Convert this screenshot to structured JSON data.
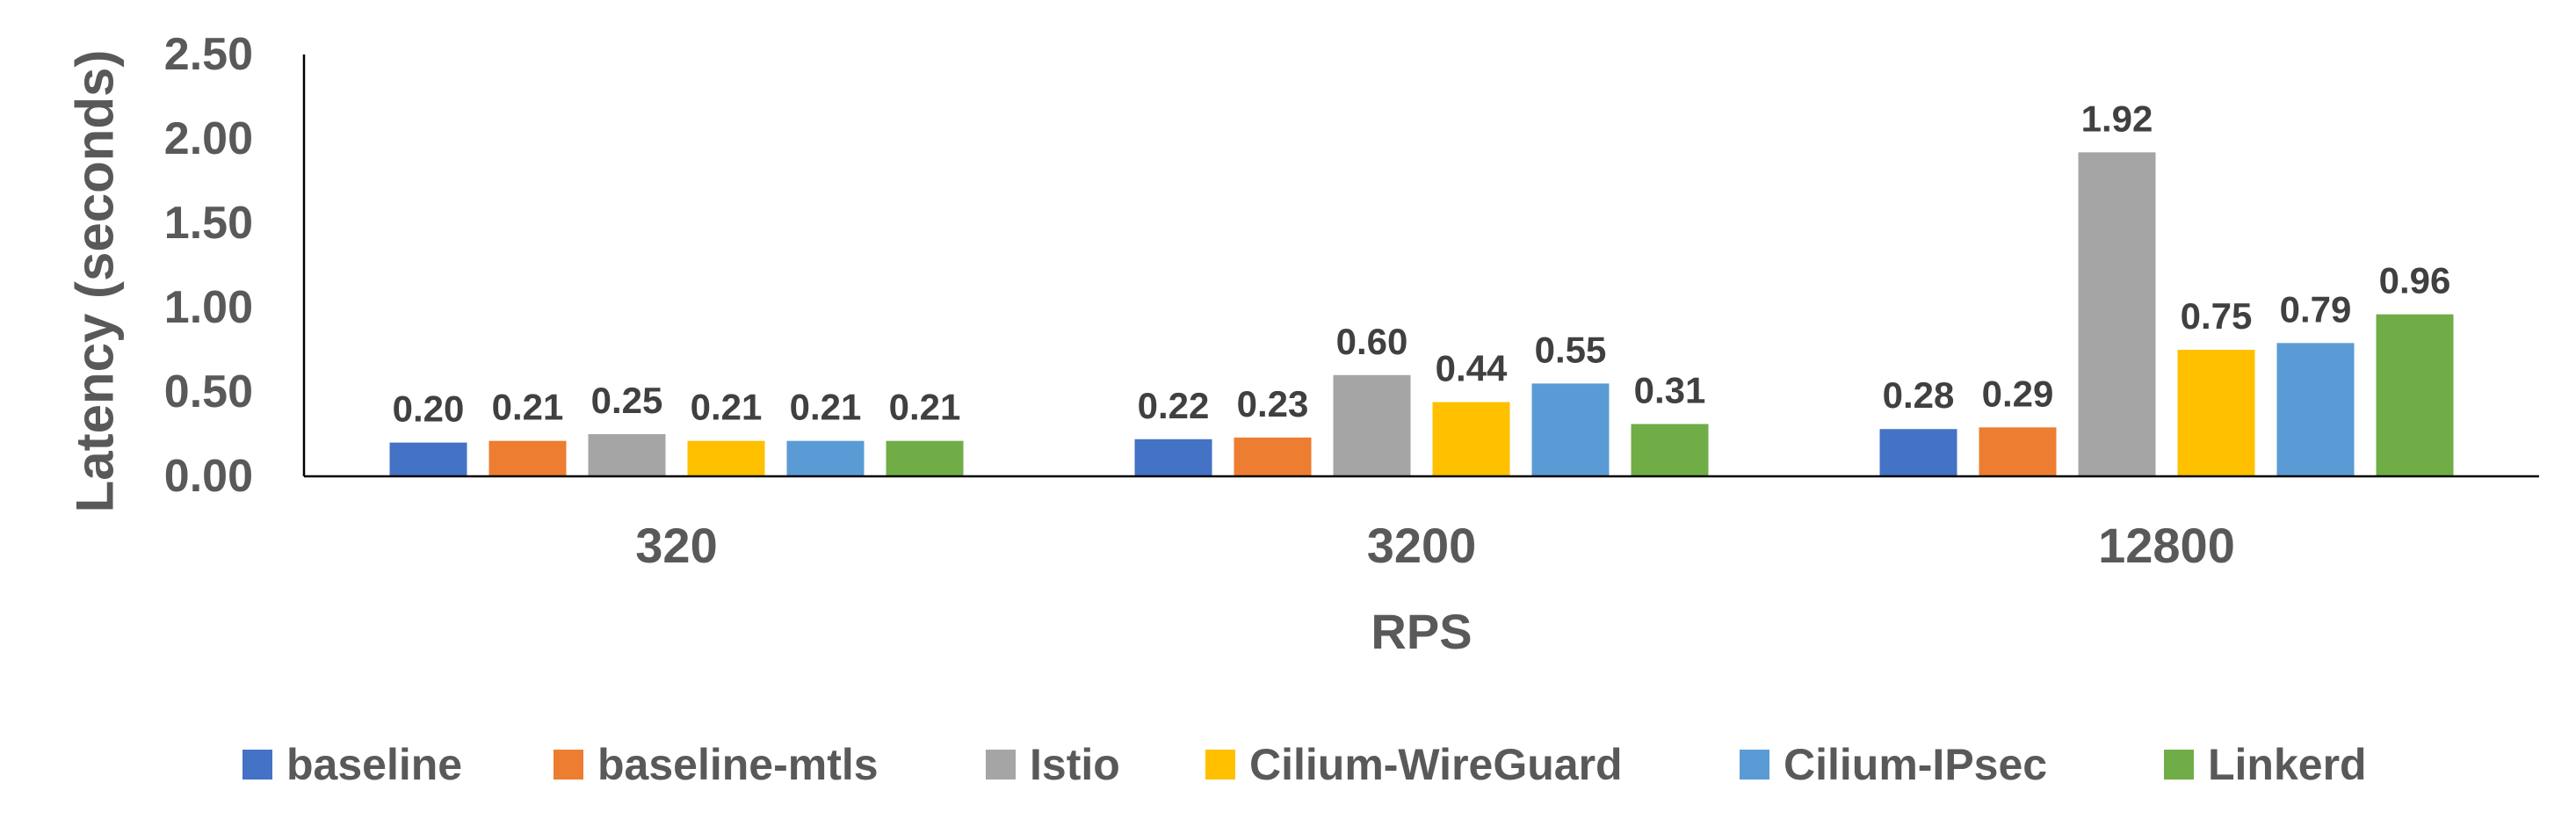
{
  "chart_data": {
    "type": "bar",
    "xlabel": "RPS",
    "ylabel": "Latency (seconds)",
    "categories": [
      "320",
      "3200",
      "12800"
    ],
    "ylim": [
      0,
      2.5
    ],
    "yticks": [
      "0.00",
      "0.50",
      "1.00",
      "1.50",
      "2.00",
      "2.50"
    ],
    "grid": false,
    "legend_position": "bottom",
    "series": [
      {
        "name": "baseline",
        "color": "#4472C4",
        "values": [
          0.2,
          0.22,
          0.28
        ],
        "labels": [
          "0.20",
          "0.22",
          "0.28"
        ]
      },
      {
        "name": "baseline-mtls",
        "color": "#ED7D31",
        "values": [
          0.21,
          0.23,
          0.29
        ],
        "labels": [
          "0.21",
          "0.23",
          "0.29"
        ]
      },
      {
        "name": "Istio",
        "color": "#A5A5A5",
        "values": [
          0.25,
          0.6,
          1.92
        ],
        "labels": [
          "0.25",
          "0.60",
          "1.92"
        ]
      },
      {
        "name": "Cilium-WireGuard",
        "color": "#FFC000",
        "values": [
          0.21,
          0.44,
          0.75
        ],
        "labels": [
          "0.21",
          "0.44",
          "0.75"
        ]
      },
      {
        "name": "Cilium-IPsec",
        "color": "#5B9BD5",
        "values": [
          0.21,
          0.55,
          0.79
        ],
        "labels": [
          "0.21",
          "0.55",
          "0.79"
        ]
      },
      {
        "name": "Linkerd",
        "color": "#70AD47",
        "values": [
          0.21,
          0.31,
          0.96
        ],
        "labels": [
          "0.21",
          "0.31",
          "0.96"
        ]
      }
    ]
  }
}
